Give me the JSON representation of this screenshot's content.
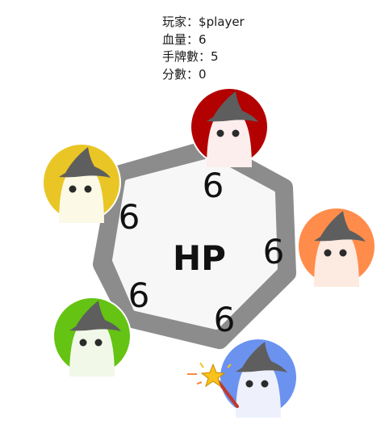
{
  "player_info": {
    "name_label": "玩家",
    "name_value": "$player",
    "hp_label": "血量",
    "hp_value": "6",
    "hand_label": "手牌數",
    "hand_value": "5",
    "score_label": "分數",
    "score_value": "0",
    "separator": "："
  },
  "board": {
    "center_label": "HP",
    "hp_values": [
      "6",
      "6",
      "6",
      "6",
      "6"
    ]
  },
  "players": [
    {
      "id": "top",
      "color": "#b30000",
      "icon": "wizard-avatar"
    },
    {
      "id": "right",
      "color": "#ff8c4a",
      "icon": "wizard-avatar"
    },
    {
      "id": "bottom",
      "color": "#6b92ef",
      "icon": "wizard-avatar",
      "active": true
    },
    {
      "id": "bottom-left",
      "color": "#65c313",
      "icon": "wizard-avatar"
    },
    {
      "id": "top-left",
      "color": "#e9c625",
      "icon": "wizard-avatar"
    }
  ],
  "colors": {
    "board_border": "#8c8c8c",
    "board_fill": "#f7f7f7",
    "hat": "#5e5e5e",
    "face": "#fdf1ee",
    "wand": "#c0392b",
    "star": "#f7c21a"
  }
}
